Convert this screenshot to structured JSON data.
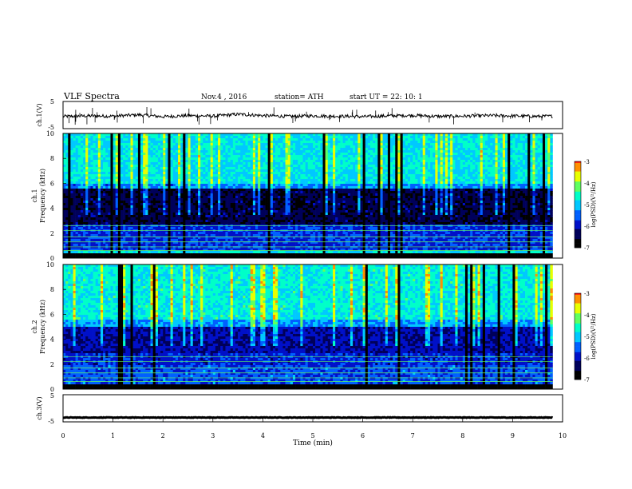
{
  "header": {
    "title": "VLF  Spectra",
    "date": "Nov.4  , 2016",
    "station": "station= ATH",
    "start": "start  UT  =   22: 10: 1"
  },
  "chart_data": [
    {
      "type": "line",
      "name": "ch1-waveform",
      "ylabel": "ch.1(V)",
      "ylim": [
        -5,
        5
      ],
      "y_ticks": [
        "5",
        "-5"
      ],
      "xlim": [
        0,
        10
      ],
      "x": [
        0,
        0.5,
        1,
        1.5,
        2,
        2.5,
        3,
        3.5,
        4,
        4.5,
        5,
        5.5,
        6,
        6.5,
        7,
        7.5,
        8,
        8.5,
        9,
        9.5,
        9.8
      ],
      "y": [
        -0.5,
        -0.3,
        -0.4,
        0.1,
        -0.6,
        -0.2,
        -0.4,
        0.3,
        -0.2,
        -0.5,
        -0.3,
        -0.4,
        -0.6,
        -0.3,
        -0.1,
        -0.5,
        -0.4,
        -0.2,
        -0.3,
        -0.5,
        -0.4
      ]
    },
    {
      "type": "heatmap",
      "name": "ch1-spectrogram",
      "ylabel": "ch.1\nFrequency  (kHz)",
      "ylim": [
        0,
        10
      ],
      "xlim": [
        0,
        10
      ],
      "data_extent_min": 9.8,
      "y_ticks": [
        "0",
        "2",
        "4",
        "6",
        "8",
        "10"
      ],
      "colorbar": {
        "label": "log(PSD)(V²/Hz)",
        "ticks": [
          "-3",
          "-4",
          "-5",
          "-6",
          "-7"
        ],
        "range": [
          -7,
          -3
        ]
      }
    },
    {
      "type": "heatmap",
      "name": "ch2-spectrogram",
      "ylabel": "ch.2\nFrequency  (kHz)",
      "ylim": [
        0,
        10
      ],
      "xlim": [
        0,
        10
      ],
      "data_extent_min": 9.8,
      "y_ticks": [
        "0",
        "2",
        "4",
        "6",
        "8",
        "10"
      ],
      "colorbar": {
        "label": "log(PSD)(V²/Hz)",
        "ticks": [
          "-3",
          "-4",
          "-5",
          "-6",
          "-7"
        ],
        "range": [
          -7,
          -3
        ]
      }
    },
    {
      "type": "line",
      "name": "ch3-waveform",
      "ylabel": "ch.3(V)",
      "ylim": [
        -5,
        5
      ],
      "y_ticks": [
        "5",
        "-5"
      ],
      "xlim": [
        0,
        10
      ],
      "x": [
        0,
        9.8
      ],
      "y": [
        -3.4,
        -3.4
      ]
    }
  ],
  "x_axis": {
    "label": "Time  (min)",
    "ticks": [
      "0",
      "1",
      "2",
      "3",
      "4",
      "5",
      "6",
      "7",
      "8",
      "9",
      "10"
    ]
  },
  "colors": {
    "palette": [
      "#000000",
      "#00005a",
      "#0010c8",
      "#0060ff",
      "#00c8ff",
      "#00ffc8",
      "#60ff60",
      "#e8ff00",
      "#ff9000",
      "#ff1010",
      "#ffffff"
    ]
  }
}
